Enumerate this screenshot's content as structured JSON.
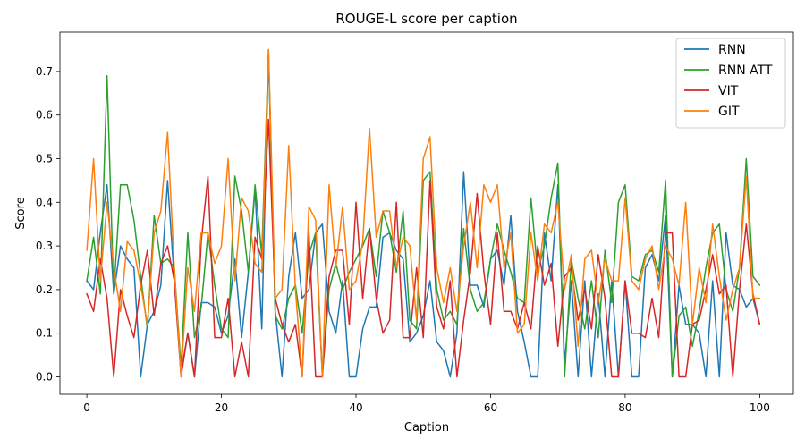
{
  "chart_data": {
    "type": "line",
    "title": "ROUGE-L score per caption",
    "xlabel": "Caption",
    "ylabel": "Score",
    "xlim": [
      -4,
      105
    ],
    "ylim": [
      -0.04,
      0.79
    ],
    "xticks": [
      0,
      20,
      40,
      60,
      80,
      100
    ],
    "yticks": [
      0.0,
      0.1,
      0.2,
      0.3,
      0.4,
      0.5,
      0.6,
      0.7
    ],
    "grid": false,
    "legend_position": "top-right",
    "series": [
      {
        "name": "RNN",
        "color": "#1f77b4",
        "values": [
          0.22,
          0.2,
          0.33,
          0.44,
          0.19,
          0.3,
          0.27,
          0.25,
          0.0,
          0.12,
          0.15,
          0.21,
          0.45,
          0.22,
          0.01,
          0.1,
          0.0,
          0.17,
          0.17,
          0.16,
          0.1,
          0.14,
          0.27,
          0.09,
          0.24,
          0.43,
          0.11,
          0.74,
          0.15,
          0.0,
          0.23,
          0.33,
          0.18,
          0.2,
          0.33,
          0.35,
          0.15,
          0.1,
          0.22,
          0.0,
          0.0,
          0.11,
          0.16,
          0.16,
          0.32,
          0.33,
          0.29,
          0.27,
          0.08,
          0.1,
          0.14,
          0.22,
          0.08,
          0.06,
          0.0,
          0.1,
          0.47,
          0.21,
          0.21,
          0.16,
          0.27,
          0.29,
          0.21,
          0.37,
          0.15,
          0.08,
          0.0,
          0.0,
          0.33,
          0.22,
          0.44,
          0.03,
          0.22,
          0.0,
          0.22,
          0.0,
          0.19,
          0.0,
          0.22,
          0.0,
          0.22,
          0.0,
          0.0,
          0.25,
          0.28,
          0.22,
          0.37,
          0.0,
          0.21,
          0.12,
          0.12,
          0.1,
          0.0,
          0.22,
          0.0,
          0.33,
          0.21,
          0.2,
          0.16,
          0.18,
          0.12
        ]
      },
      {
        "name": "RNN ATT",
        "color": "#2ca02c",
        "values": [
          0.22,
          0.32,
          0.19,
          0.69,
          0.19,
          0.44,
          0.44,
          0.36,
          0.23,
          0.11,
          0.37,
          0.26,
          0.27,
          0.25,
          0.02,
          0.33,
          0.09,
          0.16,
          0.33,
          0.21,
          0.11,
          0.09,
          0.46,
          0.38,
          0.24,
          0.44,
          0.28,
          0.75,
          0.14,
          0.11,
          0.18,
          0.21,
          0.1,
          0.28,
          0.33,
          0.0,
          0.2,
          0.26,
          0.2,
          0.24,
          0.27,
          0.3,
          0.34,
          0.23,
          0.38,
          0.33,
          0.24,
          0.38,
          0.13,
          0.11,
          0.45,
          0.47,
          0.2,
          0.13,
          0.15,
          0.12,
          0.34,
          0.2,
          0.15,
          0.17,
          0.27,
          0.35,
          0.29,
          0.24,
          0.18,
          0.17,
          0.41,
          0.24,
          0.3,
          0.41,
          0.49,
          0.0,
          0.27,
          0.18,
          0.11,
          0.22,
          0.09,
          0.29,
          0.17,
          0.4,
          0.44,
          0.23,
          0.22,
          0.28,
          0.29,
          0.24,
          0.45,
          0.0,
          0.14,
          0.16,
          0.07,
          0.15,
          0.25,
          0.33,
          0.35,
          0.2,
          0.15,
          0.25,
          0.5,
          0.23,
          0.21
        ]
      },
      {
        "name": "VIT",
        "color": "#d62728",
        "values": [
          0.19,
          0.15,
          0.27,
          0.18,
          0.0,
          0.2,
          0.14,
          0.09,
          0.21,
          0.29,
          0.14,
          0.26,
          0.3,
          0.22,
          0.0,
          0.1,
          0.0,
          0.31,
          0.46,
          0.09,
          0.09,
          0.18,
          0.0,
          0.08,
          0.0,
          0.32,
          0.27,
          0.59,
          0.18,
          0.12,
          0.08,
          0.12,
          0.0,
          0.33,
          0.0,
          0.0,
          0.23,
          0.29,
          0.29,
          0.12,
          0.4,
          0.18,
          0.34,
          0.18,
          0.1,
          0.13,
          0.4,
          0.09,
          0.09,
          0.25,
          0.09,
          0.45,
          0.16,
          0.11,
          0.22,
          0.0,
          0.13,
          0.24,
          0.42,
          0.24,
          0.12,
          0.33,
          0.15,
          0.15,
          0.11,
          0.17,
          0.11,
          0.3,
          0.21,
          0.26,
          0.07,
          0.23,
          0.25,
          0.13,
          0.2,
          0.11,
          0.28,
          0.18,
          0.0,
          0.0,
          0.22,
          0.1,
          0.1,
          0.09,
          0.18,
          0.09,
          0.33,
          0.33,
          0.0,
          0.0,
          0.12,
          0.13,
          0.2,
          0.28,
          0.19,
          0.21,
          0.0,
          0.2,
          0.35,
          0.19,
          0.12
        ]
      },
      {
        "name": "GIT",
        "color": "#ff7f0e",
        "values": [
          0.29,
          0.5,
          0.22,
          0.4,
          0.25,
          0.15,
          0.31,
          0.29,
          0.21,
          0.12,
          0.33,
          0.38,
          0.56,
          0.25,
          0.0,
          0.25,
          0.15,
          0.33,
          0.33,
          0.26,
          0.3,
          0.5,
          0.22,
          0.41,
          0.38,
          0.26,
          0.24,
          0.75,
          0.18,
          0.2,
          0.53,
          0.2,
          0.0,
          0.39,
          0.36,
          0.0,
          0.44,
          0.25,
          0.39,
          0.2,
          0.22,
          0.31,
          0.57,
          0.32,
          0.38,
          0.38,
          0.25,
          0.32,
          0.3,
          0.13,
          0.5,
          0.55,
          0.25,
          0.17,
          0.25,
          0.15,
          0.3,
          0.4,
          0.25,
          0.44,
          0.4,
          0.44,
          0.25,
          0.33,
          0.1,
          0.12,
          0.33,
          0.22,
          0.35,
          0.33,
          0.4,
          0.2,
          0.28,
          0.07,
          0.27,
          0.29,
          0.17,
          0.27,
          0.22,
          0.22,
          0.41,
          0.22,
          0.2,
          0.27,
          0.3,
          0.2,
          0.3,
          0.27,
          0.21,
          0.4,
          0.12,
          0.25,
          0.17,
          0.35,
          0.23,
          0.13,
          0.2,
          0.25,
          0.46,
          0.18,
          0.18
        ]
      }
    ]
  }
}
